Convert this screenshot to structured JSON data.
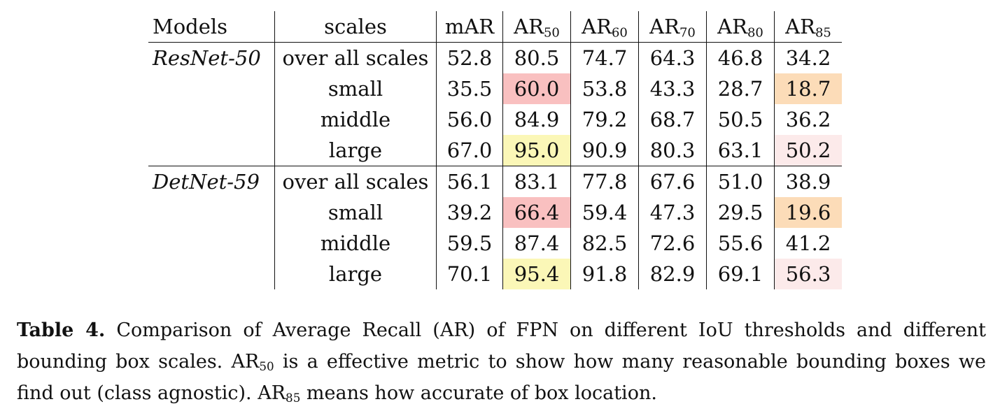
{
  "table": {
    "headers": {
      "models": "Models",
      "scales": "scales",
      "mar": "mAR",
      "ar_prefix": "AR",
      "ar_subs": [
        "50",
        "60",
        "70",
        "80",
        "85"
      ]
    },
    "groups": [
      {
        "model": "ResNet-50",
        "rows": [
          {
            "scale": "over all scales",
            "values": [
              "52.8",
              "80.5",
              "74.7",
              "64.3",
              "46.8",
              "34.2"
            ]
          },
          {
            "scale": "small",
            "values": [
              "35.5",
              "60.0",
              "53.8",
              "43.3",
              "28.7",
              "18.7"
            ]
          },
          {
            "scale": "middle",
            "values": [
              "56.0",
              "84.9",
              "79.2",
              "68.7",
              "50.5",
              "36.2"
            ]
          },
          {
            "scale": "large",
            "values": [
              "67.0",
              "95.0",
              "90.9",
              "80.3",
              "63.1",
              "50.2"
            ]
          }
        ]
      },
      {
        "model": "DetNet-59",
        "rows": [
          {
            "scale": "over all scales",
            "values": [
              "56.1",
              "83.1",
              "77.8",
              "67.6",
              "51.0",
              "38.9"
            ]
          },
          {
            "scale": "small",
            "values": [
              "39.2",
              "66.4",
              "59.4",
              "47.3",
              "29.5",
              "19.6"
            ]
          },
          {
            "scale": "middle",
            "values": [
              "59.5",
              "87.4",
              "82.5",
              "72.6",
              "55.6",
              "41.2"
            ]
          },
          {
            "scale": "large",
            "values": [
              "70.1",
              "95.4",
              "91.8",
              "82.9",
              "69.1",
              "56.3"
            ]
          }
        ]
      }
    ],
    "highlights": {
      "small_ar50": "#f9c0c0",
      "large_ar50": "#fbf7b7",
      "small_ar85": "#fcdcb8",
      "large_ar85": "#fceaea"
    }
  },
  "caption": {
    "label": "Table 4.",
    "part1": " Comparison of Average Recall (AR) of FPN on different IoU thresholds and different bounding box scales. AR",
    "sub1": "50",
    "part2": " is a effective metric to show how many reasonable bounding boxes we find out (class agnostic). AR",
    "sub2": "85",
    "part3": " means how accurate of box location."
  }
}
